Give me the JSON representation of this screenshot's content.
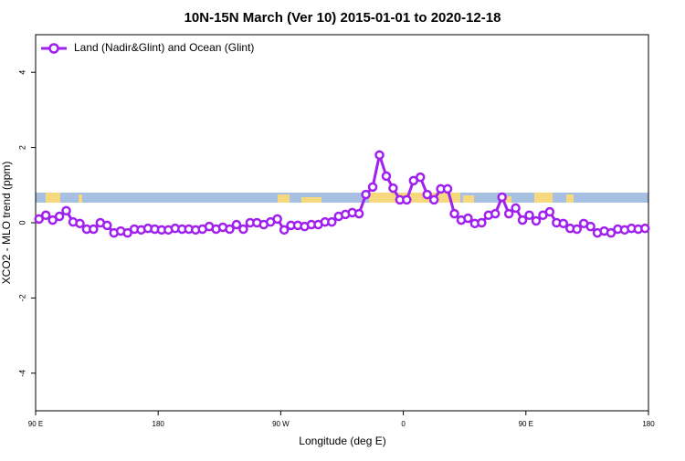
{
  "chart_data": {
    "type": "line",
    "title": "10N-15N March (Ver 10)   2015-01-01 to 2020-12-18",
    "x_label": "Longitude (deg E)",
    "y_label": "XCO2 - MLO trend (ppm)",
    "xlim": [
      90,
      540
    ],
    "ylim": [
      -5,
      5
    ],
    "xticks": [
      {
        "value": 90,
        "label": "90 E"
      },
      {
        "value": 180,
        "label": "180"
      },
      {
        "value": 270,
        "label": "90 W"
      },
      {
        "value": 360,
        "label": "0"
      },
      {
        "value": 450,
        "label": "90 E"
      },
      {
        "value": 540,
        "label": "180"
      }
    ],
    "yticks": [
      -4,
      -2,
      0,
      2,
      4
    ],
    "legend": "top-left",
    "x": [
      92.5,
      97.5,
      102.5,
      107.5,
      112.5,
      117.5,
      122.5,
      127.5,
      132.5,
      137.5,
      142.5,
      147.5,
      152.5,
      157.5,
      162.5,
      167.5,
      172.5,
      177.5,
      182.5,
      187.5,
      192.5,
      197.5,
      202.5,
      207.5,
      212.5,
      217.5,
      222.5,
      227.5,
      232.5,
      237.5,
      242.5,
      247.5,
      252.5,
      257.5,
      262.5,
      267.5,
      272.5,
      277.5,
      282.5,
      287.5,
      292.5,
      297.5,
      302.5,
      307.5,
      312.5,
      317.5,
      322.5,
      327.5,
      332.5,
      337.5,
      342.5,
      347.5,
      352.5,
      357.5,
      362.5,
      367.5,
      372.5,
      377.5,
      382.5,
      387.5,
      392.5,
      397.5,
      402.5,
      407.5,
      412.5,
      417.5,
      422.5,
      427.5,
      432.5,
      437.5,
      442.5,
      447.5,
      452.5,
      457.5,
      462.5,
      467.5,
      472.5,
      477.5,
      482.5,
      487.5,
      492.5,
      497.5,
      502.5,
      507.5,
      512.5,
      517.5,
      522.5,
      527.5,
      532.5,
      537.5
    ],
    "series": [
      {
        "name": "Land (Nadir&Glint) and Ocean (Glint)",
        "color": "#a020f0",
        "values": [
          0.1,
          0.2,
          0.07,
          0.17,
          0.32,
          0.02,
          -0.02,
          -0.17,
          -0.17,
          0,
          -0.07,
          -0.27,
          -0.22,
          -0.27,
          -0.17,
          -0.19,
          -0.15,
          -0.17,
          -0.19,
          -0.19,
          -0.15,
          -0.17,
          -0.17,
          -0.19,
          -0.17,
          -0.1,
          -0.17,
          -0.12,
          -0.17,
          -0.05,
          -0.17,
          0,
          0,
          -0.05,
          0.02,
          0.1,
          -0.19,
          -0.07,
          -0.07,
          -0.1,
          -0.05,
          -0.05,
          0.02,
          0.02,
          0.17,
          0.22,
          0.27,
          0.24,
          0.75,
          0.95,
          1.8,
          1.24,
          0.92,
          0.61,
          0.61,
          1.12,
          1.21,
          0.75,
          0.61,
          0.9,
          0.9,
          0.24,
          0.07,
          0.12,
          -0.02,
          0,
          0.2,
          0.24,
          0.68,
          0.24,
          0.39,
          0.07,
          0.2,
          0.05,
          0.2,
          0.29,
          0,
          -0.02,
          -0.15,
          -0.17,
          -0.02,
          -0.1,
          -0.27,
          -0.22,
          -0.27,
          -0.17,
          -0.19,
          -0.15,
          -0.17,
          -0.15
        ]
      }
    ]
  }
}
